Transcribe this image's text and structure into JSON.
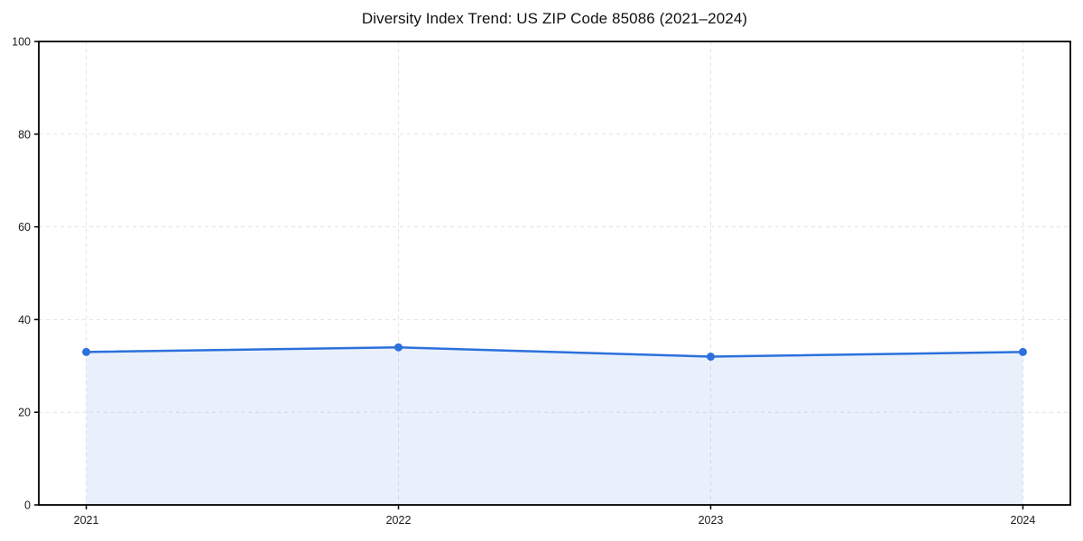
{
  "chart_data": {
    "type": "line",
    "title": "Diversity Index Trend: US ZIP Code 85086 (2021–2024)",
    "x": [
      2021,
      2022,
      2023,
      2024
    ],
    "x_tick_labels": [
      "2021",
      "2022",
      "2023",
      "2024"
    ],
    "series": [
      {
        "name": "Diversity Index",
        "values": [
          33,
          34,
          32,
          33
        ]
      }
    ],
    "xlabel": "",
    "ylabel": "",
    "ylim": [
      0,
      100
    ],
    "yticks": [
      0,
      20,
      40,
      60,
      80,
      100
    ],
    "grid": true,
    "grid_style": "dashed",
    "legend_position": "none",
    "area_fill": true,
    "marker": "circle",
    "colors": {
      "line": "#2b70dd",
      "marker": "#2b70dd",
      "fill": "#2b70dd",
      "fill_opacity": 0.1,
      "grid": "#e3e3e3",
      "spine": "#000000",
      "tick_label": "#1a1a1a",
      "title": "#111111",
      "background": "#ffffff"
    }
  }
}
